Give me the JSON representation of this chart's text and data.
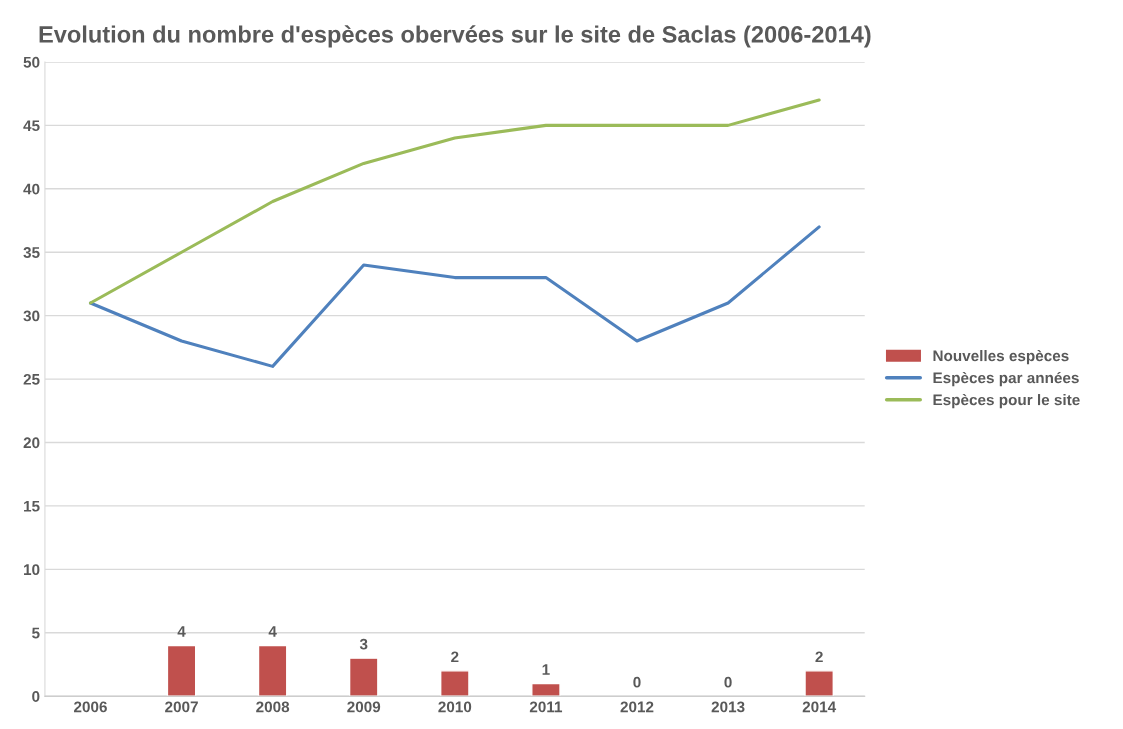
{
  "chart_data": {
    "type": "line",
    "title": "Evolution du nombre d'espèces obervées sur le site de Saclas (2006-2014)",
    "categories": [
      "2006",
      "2007",
      "2008",
      "2009",
      "2010",
      "2011",
      "2012",
      "2013",
      "2014"
    ],
    "series": [
      {
        "name": "Nouvelles espèces",
        "type": "bar",
        "color": "#c0504d",
        "values": [
          null,
          4,
          4,
          3,
          2,
          1,
          0,
          0,
          2
        ],
        "value_labels": [
          null,
          "4",
          "4",
          "3",
          "2",
          "1",
          "0",
          "0",
          "2"
        ]
      },
      {
        "name": "Espèces par années",
        "color": "#4f81bd",
        "values": [
          31,
          28,
          26,
          34,
          33,
          33,
          28,
          31,
          37
        ]
      },
      {
        "name": "Espèces pour le site",
        "color": "#9bbb59",
        "values": [
          31,
          35,
          39,
          42,
          44,
          45,
          45,
          45,
          47
        ]
      }
    ],
    "ylim": [
      0,
      50
    ],
    "yticks": [
      0,
      5,
      10,
      15,
      20,
      25,
      30,
      35,
      40,
      45,
      50
    ],
    "grid": "y",
    "legend": "right"
  }
}
